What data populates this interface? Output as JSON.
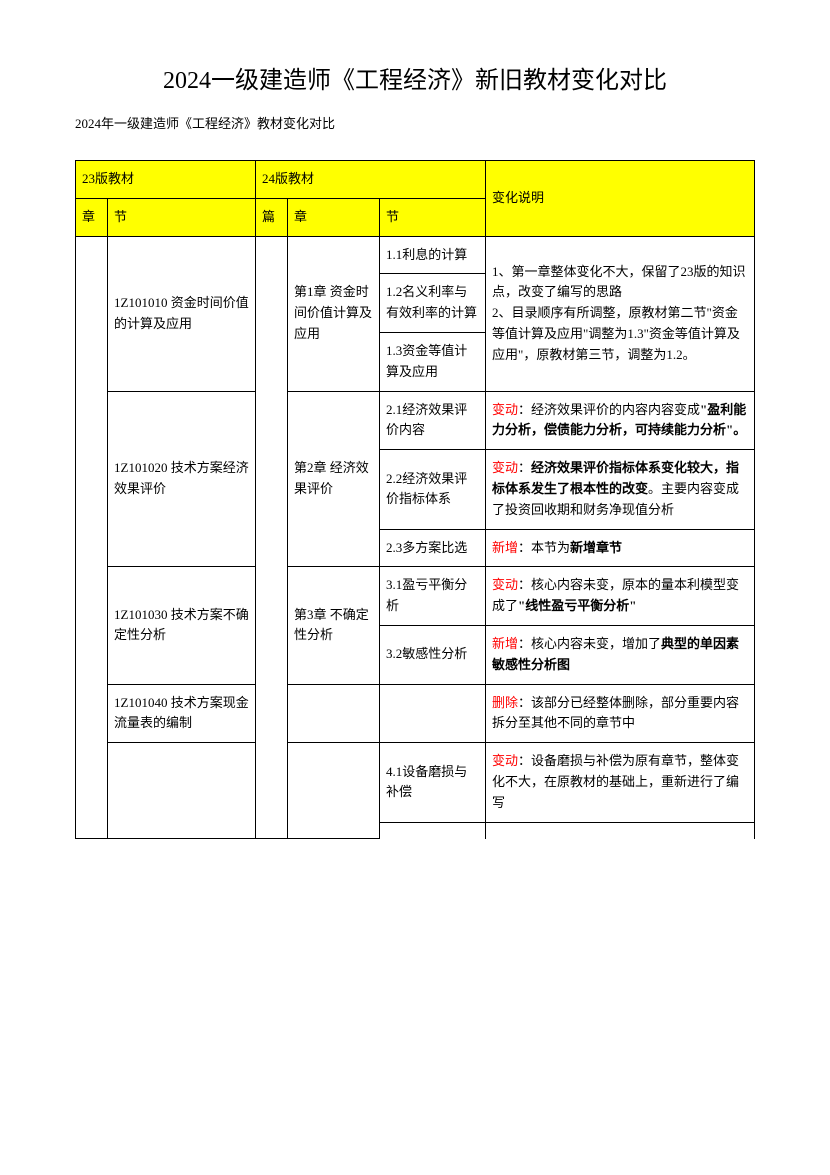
{
  "title": "2024一级建造师《工程经济》新旧教材变化对比",
  "subtitle": "2024年一级建造师《工程经济》教材变化对比",
  "headers": {
    "v23": "23版教材",
    "v24": "24版教材",
    "change": "变化说明",
    "chapter": "章",
    "section": "节",
    "pian": "篇"
  },
  "r1": {
    "sec23": "1Z101010 资金时间价值的计算及应用",
    "ch24": "第1章 资金时间价值计算及应用",
    "s1": "1.1利息的计算",
    "s2": "1.2名义利率与有效利率的计算",
    "s3": "1.3资金等值计算及应用",
    "note": "1、第一章整体变化不大，保留了23版的知识点，改变了编写的思路\n2、目录顺序有所调整，原教材第二节\"资金等值计算及应用\"调整为1.3\"资金等值计算及应用\"，原教材第三节，调整为1.2。"
  },
  "r2": {
    "sec23": "1Z101020 技术方案经济效果评价",
    "ch24": "第2章 经济效果评价",
    "s1": "2.1经济效果评价内容",
    "s2": "2.2经济效果评价指标体系",
    "s3": "2.3多方案比选",
    "n1a": "变动",
    "n1b": "：经济效果评价的内容内容变成",
    "n1c": "\"盈利能力分析，偿债能力分析，可持续能力分析\"。",
    "n2a": "变动",
    "n2b": "：",
    "n2c": "经济效果评价指标体系变化较大，指标体系发生了根本性的改变",
    "n2d": "。主要内容变成了投资回收期和财务净现值分析",
    "n3a": "新增",
    "n3b": "：本节为",
    "n3c": "新增章节"
  },
  "r3": {
    "sec23": "1Z101030 技术方案不确定性分析",
    "ch24": "第3章 不确定性分析",
    "s1": "3.1盈亏平衡分析",
    "s2": "3.2敏感性分析",
    "n1a": "变动",
    "n1b": "：核心内容未变，原本的量本利模型变成了",
    "n1c": "\"线性盈亏平衡分析\"",
    "n2a": "新增",
    "n2b": "：核心内容未变，增加了",
    "n2c": "典型的单因素敏感性分析图"
  },
  "r4": {
    "sec23": "1Z101040 技术方案现金流量表的编制",
    "n1a": "删除",
    "n1b": "：该部分已经整体删除，部分重要内容拆分至其他不同的章节中"
  },
  "r5": {
    "s1": "4.1设备磨损与补偿",
    "n1a": "变动",
    "n1b": "：设备磨损与补偿为原有章节，整体变化不大，在原教材的基础上，重新进行了编写"
  }
}
